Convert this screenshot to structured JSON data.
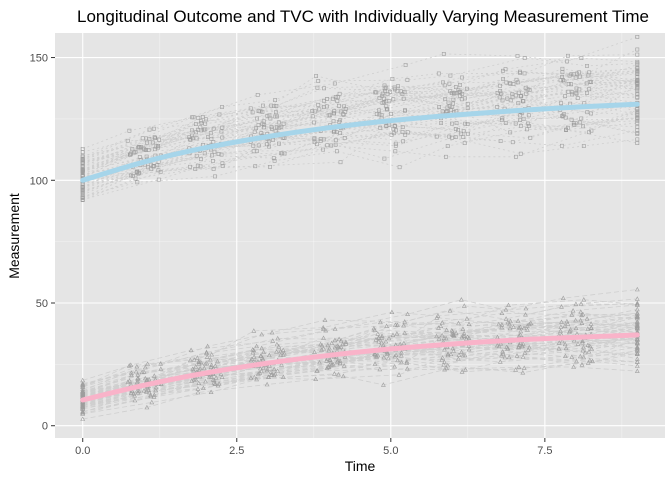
{
  "chart_data": {
    "type": "line",
    "title": "Longitudinal Outcome and TVC with Individually Varying Measurement Time",
    "xlabel": "Time",
    "ylabel": "Measurement",
    "xlim": [
      -0.45,
      9.45
    ],
    "ylim": [
      -5,
      160
    ],
    "x_ticks": [
      {
        "value": 0,
        "label": "0.0"
      },
      {
        "value": 2.5,
        "label": "2.5"
      },
      {
        "value": 5,
        "label": "5.0"
      },
      {
        "value": 7.5,
        "label": "7.5"
      }
    ],
    "y_ticks": [
      {
        "value": 0,
        "label": "0"
      },
      {
        "value": 50,
        "label": "50"
      },
      {
        "value": 100,
        "label": "100"
      },
      {
        "value": 150,
        "label": "150"
      }
    ],
    "grid": true,
    "background": "#e5e5e5",
    "series": [
      {
        "role": "outcome",
        "smooth_color": "#a6d5ea",
        "point_shape": "square",
        "x": [
          0,
          1,
          2,
          3,
          4,
          5,
          6,
          7,
          8,
          9
        ],
        "smooth": [
          100,
          107.5,
          113.3,
          117.8,
          121.4,
          124.3,
          126.5,
          128.3,
          129.8,
          131
        ],
        "spread": [
          6,
          6.5,
          7,
          8,
          8.5,
          9,
          9.5,
          10,
          10,
          10.5
        ]
      },
      {
        "role": "tvc",
        "smooth_color": "#f9b3c9",
        "point_shape": "triangle",
        "x": [
          0,
          1,
          2,
          3,
          4,
          5,
          6,
          7,
          8,
          9
        ],
        "smooth": [
          10.5,
          16.5,
          21.5,
          25.5,
          28.7,
          31.3,
          33.3,
          34.9,
          36,
          37
        ],
        "spread": [
          3.5,
          4,
          4.5,
          5,
          5.5,
          6,
          6.5,
          6.5,
          7,
          7
        ]
      }
    ],
    "colors": {
      "points": "#9e9e9e",
      "trajectories": "#cfcfcf",
      "grid_major": "#ffffff"
    }
  }
}
